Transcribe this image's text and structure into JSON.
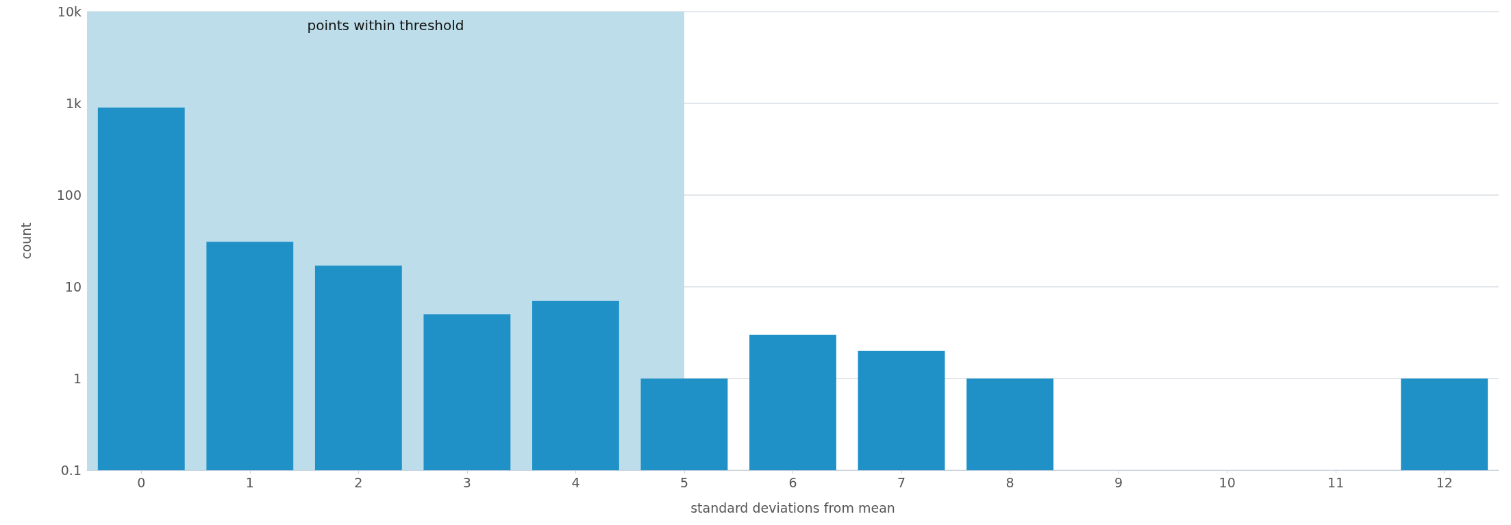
{
  "chart_data": {
    "type": "bar",
    "xlabel": "standard deviations from mean",
    "ylabel": "count",
    "x": [
      0,
      1,
      2,
      3,
      4,
      5,
      6,
      7,
      8,
      9,
      10,
      11,
      12
    ],
    "xlim": [
      -0.5,
      12.5
    ],
    "xticks": [
      0,
      1,
      2,
      3,
      4,
      5,
      6,
      7,
      8,
      9,
      10,
      11,
      12
    ],
    "ylim": [
      0.1,
      10000
    ],
    "yticks": [
      {
        "value": 0.1,
        "label": "0.1"
      },
      {
        "value": 1,
        "label": "1"
      },
      {
        "value": 10,
        "label": "10"
      },
      {
        "value": 100,
        "label": "100"
      },
      {
        "value": 1000,
        "label": "1k"
      },
      {
        "value": 10000,
        "label": "10k"
      }
    ],
    "log": true,
    "grid": "y",
    "series": [
      {
        "color": "#1f91c7",
        "values": [
          900,
          31,
          17,
          5,
          7,
          1,
          3,
          2,
          1,
          null,
          null,
          null,
          1
        ]
      }
    ],
    "bands": [
      {
        "axis": "x",
        "from": -0.5,
        "to": 5,
        "label": "points within threshold",
        "color": "#bcdde9"
      }
    ]
  }
}
